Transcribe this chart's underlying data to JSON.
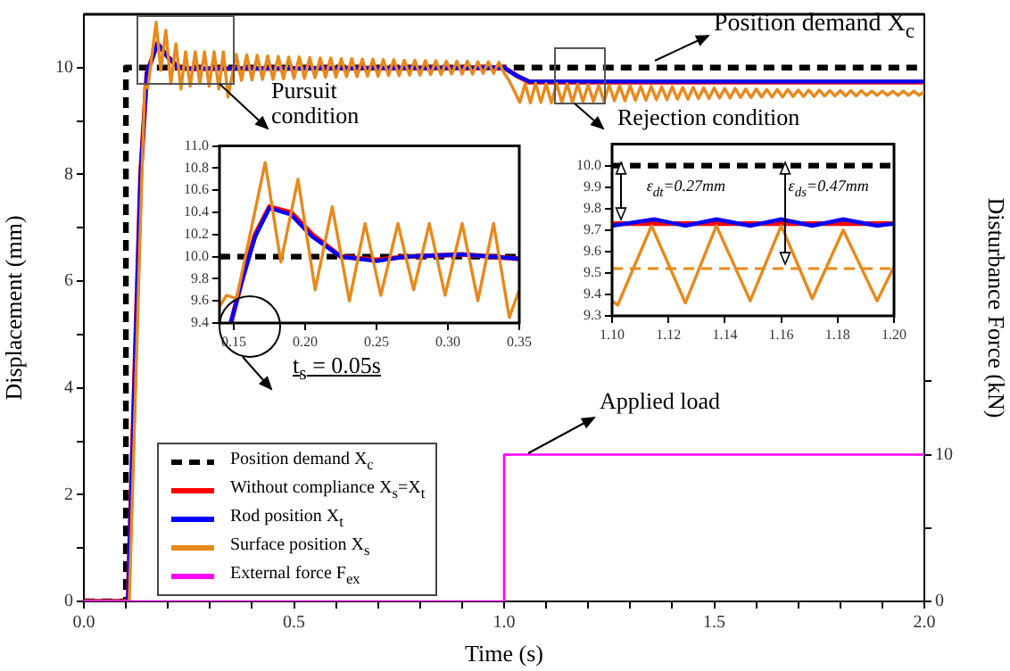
{
  "chart_data": [
    {
      "type": "line",
      "xlabel": "Time (s)",
      "ylabel": "Displacement (mm)",
      "y2label": "Disturbance Force (kN)",
      "xlim": [
        0,
        2
      ],
      "xticks": [
        {
          "value": 0,
          "label": "0.0"
        },
        {
          "value": 0.1,
          "label": null
        },
        {
          "value": 0.2,
          "label": null
        },
        {
          "value": 0.3,
          "label": null
        },
        {
          "value": 0.4,
          "label": null
        },
        0.5,
        {
          "value": 0.6,
          "label": null
        },
        {
          "value": 0.7,
          "label": null
        },
        {
          "value": 0.8,
          "label": null
        },
        {
          "value": 0.9,
          "label": null
        },
        {
          "value": 1,
          "label": "1.0"
        },
        {
          "value": 1.1,
          "label": null
        },
        {
          "value": 1.2,
          "label": null
        },
        {
          "value": 1.3,
          "label": null
        },
        {
          "value": 1.4,
          "label": null
        },
        1.5,
        {
          "value": 1.6,
          "label": null
        },
        {
          "value": 1.7,
          "label": null
        },
        {
          "value": 1.8,
          "label": null
        },
        {
          "value": 1.9,
          "label": null
        },
        {
          "value": 2,
          "label": "2.0"
        }
      ],
      "ylim": [
        0,
        11
      ],
      "yticks": [
        0,
        {
          "value": 1,
          "label": null
        },
        2,
        {
          "value": 3,
          "label": null
        },
        4,
        {
          "value": 5,
          "label": null
        },
        6,
        {
          "value": 7,
          "label": null
        },
        8,
        {
          "value": 9,
          "label": null
        },
        10
      ],
      "y2lim": [
        0,
        40
      ],
      "y2ticks": [
        0,
        {
          "value": 5,
          "label": null
        },
        10,
        {
          "value": 15,
          "label": null
        }
      ],
      "legend": "bottom left",
      "series": [
        {
          "name": "Position demand X$_{c}$",
          "color": "#000000",
          "line_style": "dashed",
          "x": [
            0,
            0.1,
            0.1,
            2
          ],
          "values": [
            0,
            0,
            10,
            10
          ]
        },
        {
          "name": "Without compliance X$_{s}$=X$_{t}$",
          "color": "#ff0000",
          "x": [
            0,
            0.105,
            0.12,
            0.135,
            0.15,
            0.175,
            0.2,
            0.225,
            0.25,
            1.0,
            1.03,
            1.06,
            2.0
          ],
          "values": [
            0,
            0,
            4,
            8,
            9.9,
            10.45,
            10.2,
            10.0,
            9.98,
            10.0,
            9.85,
            9.73,
            9.73
          ]
        },
        {
          "name": "Rod position X$_{t}$",
          "color": "#0000ff",
          "x": [
            0,
            0.105,
            0.12,
            0.135,
            0.15,
            0.175,
            0.2,
            0.225,
            0.25,
            1.0,
            1.03,
            1.06,
            2.0
          ],
          "values": [
            0,
            0,
            4,
            8,
            9.9,
            10.45,
            10.2,
            10.0,
            9.98,
            10.0,
            9.85,
            9.74,
            9.74
          ]
        },
        {
          "name": "Surface position X$_{s}$",
          "color": "#e8891b",
          "x": [
            0,
            0.108,
            0.123,
            0.138,
            0.145,
            0.152,
            0.172,
            0.183,
            0.195,
            0.207,
            0.219,
            0.231,
            0.242,
            0.253,
            0.265,
            0.276,
            0.287,
            0.298,
            0.31,
            0.321,
            0.332,
            0.343,
            0.3625,
            0.375,
            0.3875,
            0.4,
            0.4125,
            0.425,
            0.4375,
            0.45,
            0.4625,
            0.475,
            0.4875,
            0.5,
            0.5125,
            0.525,
            0.5375,
            0.55,
            0.5625,
            0.575,
            0.5875,
            0.6,
            0.6125,
            0.625,
            0.6375,
            0.65,
            0.6625,
            0.675,
            0.6875,
            0.7,
            0.7125,
            0.725,
            0.7375,
            0.75,
            0.7625,
            0.775,
            0.7875,
            0.8,
            0.8125,
            0.825,
            0.8375,
            0.85,
            0.8625,
            0.875,
            0.8875,
            0.9,
            0.9125,
            0.925,
            0.9375,
            0.95,
            0.9625,
            0.975,
            0.9875,
            1.0,
            1.0125,
            1.025,
            1.0375,
            1.05,
            1.0625,
            1.075,
            1.0875,
            1.1,
            1.1125,
            1.125,
            1.1375,
            1.15,
            1.1625,
            1.175,
            1.1875,
            1.2,
            1.2125,
            1.225,
            1.2375,
            1.25,
            1.2625,
            1.275,
            1.2875,
            1.3,
            1.3125,
            1.325,
            1.3375,
            1.35,
            1.3625,
            1.375,
            1.3875,
            1.4,
            1.4125,
            1.425,
            1.4375,
            1.45,
            1.4625,
            1.475,
            1.4875,
            1.5,
            1.5125,
            1.525,
            1.5375,
            1.55,
            1.5625,
            1.575,
            1.5875,
            1.6,
            1.6125,
            1.625,
            1.6375,
            1.65,
            1.6625,
            1.675,
            1.6875,
            1.7,
            1.7125,
            1.725,
            1.7375,
            1.75,
            1.7625,
            1.775,
            1.7875,
            1.8,
            1.8125,
            1.825,
            1.8375,
            1.85,
            1.8625,
            1.875,
            1.8875,
            1.9,
            1.9125,
            1.925,
            1.9375,
            1.95,
            1.9625,
            1.975,
            1.9875,
            2.0
          ],
          "values": [
            0,
            0,
            4,
            8,
            9.65,
            9.62,
            10.85,
            9.95,
            10.7,
            9.7,
            10.45,
            9.6,
            10.3,
            9.65,
            10.3,
            9.7,
            10.3,
            9.65,
            10.3,
            9.6,
            10.3,
            9.45,
            10.25,
            9.76,
            10.24,
            9.77,
            10.23,
            9.78,
            10.22,
            9.78,
            10.21,
            9.79,
            10.2,
            9.8,
            10.2,
            9.8,
            10.19,
            9.81,
            10.18,
            9.82,
            10.18,
            9.82,
            10.17,
            9.83,
            10.17,
            9.83,
            10.16,
            9.84,
            10.16,
            9.84,
            10.15,
            9.85,
            10.15,
            9.85,
            10.14,
            9.86,
            10.14,
            9.86,
            10.13,
            9.87,
            10.13,
            9.87,
            10.12,
            9.88,
            10.12,
            9.88,
            10.12,
            9.88,
            10.11,
            9.89,
            10.11,
            9.89,
            10.1,
            9.9,
            9.75,
            9.55,
            9.35,
            9.7,
            9.34,
            9.71,
            9.35,
            9.7,
            9.34,
            9.7,
            9.35,
            9.7,
            9.35,
            9.69,
            9.36,
            9.68,
            9.37,
            9.67,
            9.37,
            9.67,
            9.38,
            9.66,
            9.38,
            9.66,
            9.39,
            9.65,
            9.39,
            9.65,
            9.4,
            9.64,
            9.4,
            9.64,
            9.41,
            9.63,
            9.41,
            9.63,
            9.42,
            9.62,
            9.42,
            9.62,
            9.43,
            9.61,
            9.43,
            9.61,
            9.44,
            9.6,
            9.44,
            9.6,
            9.45,
            9.59,
            9.45,
            9.59,
            9.45,
            9.59,
            9.46,
            9.58,
            9.46,
            9.58,
            9.46,
            9.58,
            9.47,
            9.57,
            9.47,
            9.57,
            9.47,
            9.57,
            9.47,
            9.57,
            9.48,
            9.56,
            9.48,
            9.56,
            9.48,
            9.56,
            9.48,
            9.56,
            9.48,
            9.56,
            9.48,
            9.55
          ]
        },
        {
          "name": "External force F$_{ex}$",
          "color": "#ff00ff",
          "axis": "y2",
          "x": [
            0,
            1.0,
            1.0,
            2.0
          ],
          "values": [
            0,
            0,
            10,
            10
          ]
        }
      ],
      "annotations": [
        "Position demand X$_{c}$",
        "Pursuit condition",
        "Rejection condition",
        "t$_{s}$ = 0.05s",
        "Applied load"
      ]
    },
    {
      "type": "line",
      "xlim": [
        0.14,
        0.35
      ],
      "xticks": [
        0.15,
        {
          "value": 0.2,
          "label": "0.20"
        },
        0.25,
        {
          "value": 0.3,
          "label": "0.30"
        },
        0.35
      ],
      "ylim": [
        9.4,
        11
      ],
      "yticks": [
        9.4,
        9.6,
        9.8,
        {
          "value": 10,
          "label": "10.0"
        },
        10.2,
        10.4,
        10.6,
        10.8,
        {
          "value": 11,
          "label": "11.0"
        }
      ],
      "series": [
        {
          "color": "#000000",
          "line_style": "dashed",
          "x": [
            0.14,
            0.35
          ],
          "values": [
            10,
            10
          ]
        },
        {
          "color": "#ff0000",
          "x": [
            0.148,
            0.155,
            0.165,
            0.175,
            0.19,
            0.205,
            0.225,
            0.25,
            0.27,
            0.31,
            0.35
          ],
          "values": [
            9.4,
            9.75,
            10.2,
            10.45,
            10.4,
            10.2,
            10.0,
            9.97,
            10.0,
            10.02,
            9.98
          ]
        },
        {
          "color": "#0000ff",
          "x": [
            0.148,
            0.155,
            0.165,
            0.175,
            0.19,
            0.205,
            0.225,
            0.25,
            0.27,
            0.31,
            0.35
          ],
          "values": [
            9.4,
            9.75,
            10.18,
            10.44,
            10.38,
            10.18,
            10.0,
            9.96,
            10.0,
            10.02,
            9.98
          ]
        },
        {
          "color": "#e8891b",
          "x": [
            0.14,
            0.145,
            0.152,
            0.172,
            0.183,
            0.195,
            0.207,
            0.219,
            0.231,
            0.242,
            0.253,
            0.265,
            0.276,
            0.287,
            0.298,
            0.31,
            0.321,
            0.332,
            0.343,
            0.35
          ],
          "values": [
            9.55,
            9.65,
            9.62,
            10.85,
            9.95,
            10.7,
            9.7,
            10.45,
            9.6,
            10.3,
            9.65,
            10.3,
            9.7,
            10.3,
            9.65,
            10.3,
            9.6,
            10.3,
            9.45,
            9.7
          ]
        }
      ]
    },
    {
      "type": "line",
      "xlim": [
        1.1,
        1.2
      ],
      "xticks": [
        {
          "value": 1.1,
          "label": "1.10"
        },
        1.12,
        1.14,
        1.16,
        1.18,
        {
          "value": 1.2,
          "label": "1.20"
        }
      ],
      "ylim": [
        9.3,
        10.1
      ],
      "yticks": [
        9.3,
        9.4,
        9.5,
        9.6,
        9.7,
        9.8,
        9.9,
        {
          "value": 10,
          "label": "10.0"
        }
      ],
      "ref_lines": [
        {
          "axis": "y",
          "value": 9.52,
          "color": "#e8891b",
          "line_style": "dashed"
        }
      ],
      "series": [
        {
          "color": "#000000",
          "line_style": "dashed",
          "x": [
            1.1,
            1.2
          ],
          "values": [
            10,
            10
          ]
        },
        {
          "color": "#ff0000",
          "x": [
            1.1,
            1.2
          ],
          "values": [
            9.73,
            9.73
          ]
        },
        {
          "color": "#0000ff",
          "x": [
            1.1,
            1.115,
            1.126,
            1.137,
            1.149,
            1.16,
            1.171,
            1.182,
            1.194,
            1.2
          ],
          "values": [
            9.72,
            9.75,
            9.72,
            9.75,
            9.72,
            9.75,
            9.72,
            9.75,
            9.72,
            9.73
          ]
        },
        {
          "color": "#e8891b",
          "x": [
            1.1,
            1.102,
            1.114,
            1.126,
            1.137,
            1.149,
            1.16,
            1.171,
            1.182,
            1.194,
            1.2
          ],
          "values": [
            9.37,
            9.35,
            9.72,
            9.36,
            9.72,
            9.37,
            9.72,
            9.38,
            9.7,
            9.37,
            9.53
          ]
        }
      ],
      "annotations": [
        {
          "text": "ε$_{dt}$=0.27mm",
          "x": 1.104,
          "y": 9.73
        },
        {
          "text": "ε$_{ds}$=0.47mm",
          "x": 1.16,
          "y": 9.52
        }
      ]
    }
  ]
}
